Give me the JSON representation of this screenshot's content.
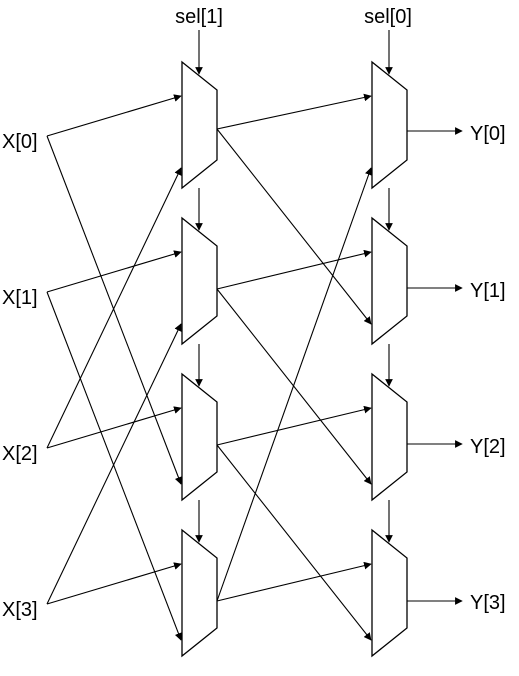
{
  "inputs": [
    "X[0]",
    "X[1]",
    "X[2]",
    "X[3]"
  ],
  "outputs": [
    "Y[0]",
    "Y[1]",
    "Y[2]",
    "Y[3]"
  ],
  "selects": [
    "sel[1]",
    "sel[0]"
  ],
  "colors": {
    "stroke": "#000000",
    "background": "#ffffff"
  }
}
